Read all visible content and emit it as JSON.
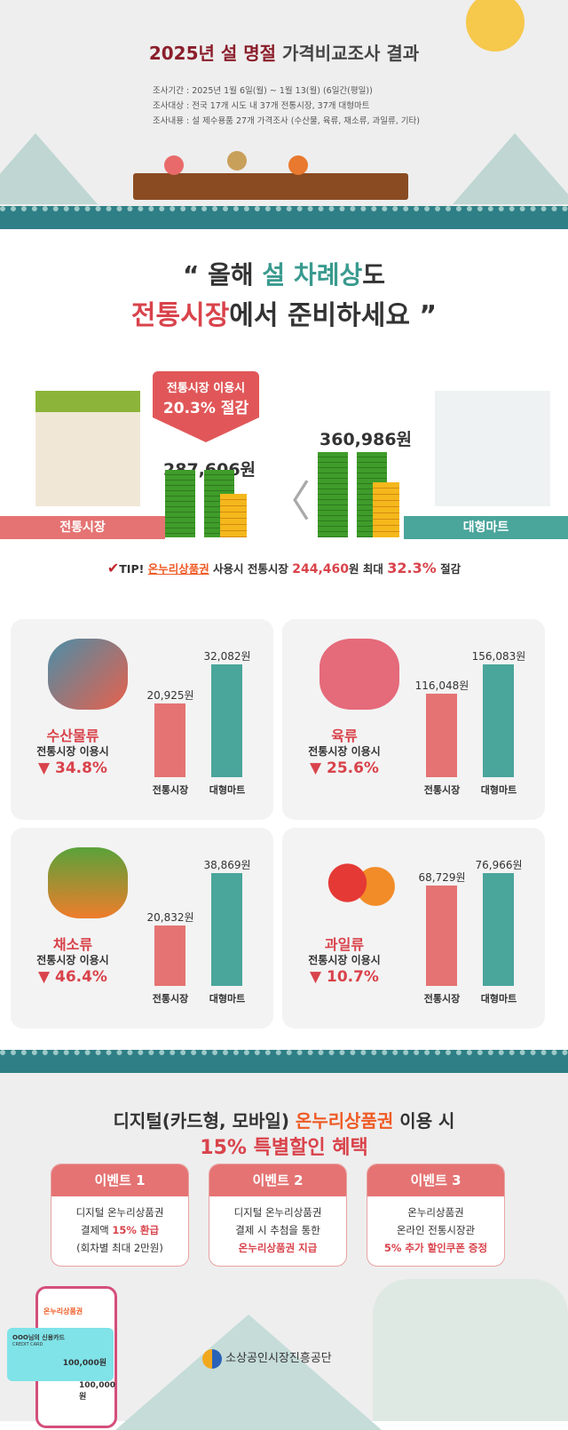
{
  "header": {
    "title_highlight": "2025년 설 명절",
    "title_rest": "가격비교조사 결과",
    "info": [
      "조사기간 : 2025년 1월 6일(월) ~ 1월 13(월) (6일간(평일))",
      "조사대상 : 전국 17개 시도 내 37개 전통시장, 37개 대형마트",
      "조사내용 : 설 제수용품 27개 가격조사 (수산물, 육류, 채소류, 과일류, 기타)"
    ]
  },
  "headline": {
    "line1_a": "“ 올해 ",
    "line1_b": "설 차례상",
    "line1_c": "도",
    "line2_a": "전통시장",
    "line2_b": "에서 준비하세요 ”"
  },
  "comparison": {
    "badge_line1": "전통시장 이용시",
    "badge_line2": "20.3% 절감",
    "market_label": "전통시장",
    "market_value": 287606,
    "market_amount": "287,606원",
    "mart_label": "대형마트",
    "mart_value": 360986,
    "mart_amount": "360,986원",
    "compare_symbol": "〈"
  },
  "tip": {
    "check": "✔",
    "prefix": "TIP! ",
    "voucher": "온누리상품권",
    "mid": " 사용시 전통시장 ",
    "amount": "244,460",
    "won": "원 최대 ",
    "pct": "32.3%",
    "suffix": " 절감"
  },
  "chart_data": {
    "type": "bar",
    "categories": [
      "전통시장",
      "대형마트"
    ],
    "panels": [
      {
        "name": "수산물류",
        "subtitle": "전통시장 이용시",
        "saving": "▼ 34.8%",
        "icon": "fish-shrimp-icon",
        "values": [
          20925,
          32082
        ],
        "labels": [
          "20,925원",
          "32,082원"
        ]
      },
      {
        "name": "육류",
        "subtitle": "전통시장 이용시",
        "saving": "▼ 25.6%",
        "icon": "meat-icon",
        "values": [
          116048,
          156083
        ],
        "labels": [
          "116,048원",
          "156,083원"
        ]
      },
      {
        "name": "채소류",
        "subtitle": "전통시장 이용시",
        "saving": "▼ 46.4%",
        "icon": "vegetable-icon",
        "values": [
          20832,
          38869
        ],
        "labels": [
          "20,832원",
          "38,869원"
        ]
      },
      {
        "name": "과일류",
        "subtitle": "전통시장 이용시",
        "saving": "▼ 10.7%",
        "icon": "fruit-icon",
        "values": [
          68729,
          76966
        ],
        "labels": [
          "68,729원",
          "76,966원"
        ]
      }
    ],
    "colors": {
      "market": "#e57373",
      "mart": "#4aa59b"
    }
  },
  "events": {
    "title_a": "디지털(카드형, 모바일) ",
    "title_b": "온누리상품권",
    "title_c": " 이용 시",
    "subtitle": "15% 특별할인 혜택",
    "items": [
      {
        "label": "이벤트 1",
        "l1": "디지털 온누리상품권",
        "l2a": "결제액 ",
        "l2b": "15% 환급",
        "l3": "(회차별 최대 2만원)"
      },
      {
        "label": "이벤트 2",
        "l1": "디지털 온누리상품권",
        "l2a": "결제 시 추첨을 통한",
        "l2b": "",
        "l3": "온누리상품권 지급"
      },
      {
        "label": "이벤트 3",
        "l1": "온누리상품권",
        "l2a": "온라인 전통시장관",
        "l2b": "",
        "l3": "5% 추가 할인쿠폰 증정"
      }
    ]
  },
  "phone": {
    "app_title": "온누리상품권",
    "card_name": "OOO님의 신용카드",
    "card_sub": "CREDIT CARD",
    "card_amount": "100,000원",
    "row_amount": "100,000원"
  },
  "footer": {
    "org": "소상공인시장진흥공단"
  }
}
